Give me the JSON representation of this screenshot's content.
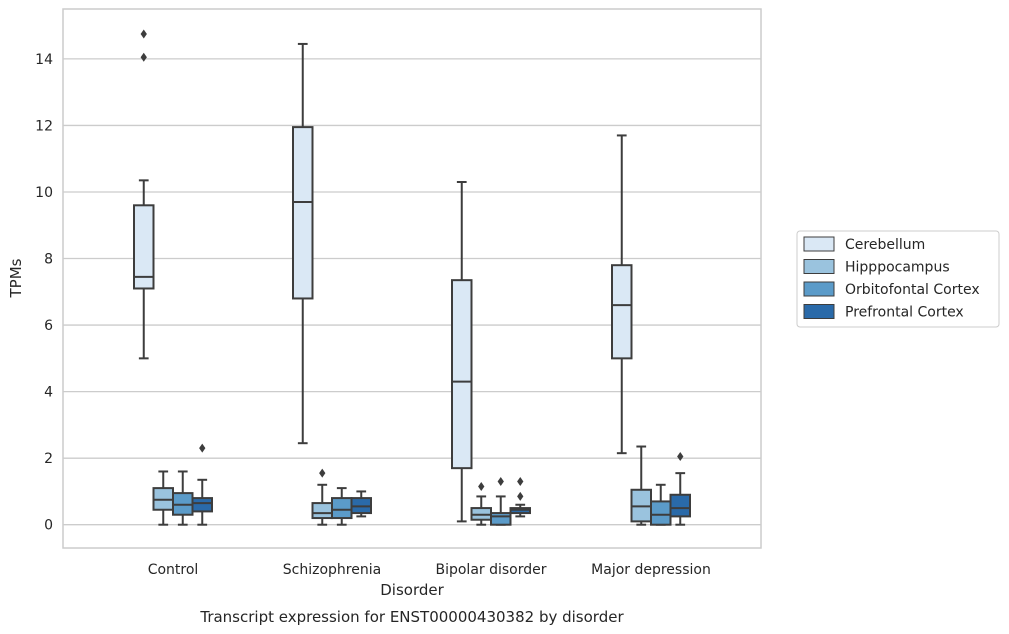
{
  "chart_data": {
    "type": "box",
    "title": "",
    "caption": "Transcript expression for ENST00000430382 by disorder",
    "xlabel": "Disorder",
    "ylabel": "TPMs",
    "ylim": [
      -0.7,
      15.5
    ],
    "yticks": [
      0,
      2,
      4,
      6,
      8,
      10,
      12,
      14
    ],
    "grid": true,
    "legend_position": "right",
    "categories": [
      "Control",
      "Schizophrenia",
      "Bipolar disorder",
      "Major depression"
    ],
    "series": [
      {
        "name": "Cerebellum",
        "color": "#dae8f5",
        "boxes": [
          {
            "whislo": 5.0,
            "q1": 7.1,
            "med": 7.45,
            "q3": 9.6,
            "whishi": 10.35,
            "fliers": [
              14.05,
              14.75
            ]
          },
          {
            "whislo": 2.45,
            "q1": 6.8,
            "med": 9.7,
            "q3": 11.95,
            "whishi": 14.45,
            "fliers": []
          },
          {
            "whislo": 0.1,
            "q1": 1.7,
            "med": 4.3,
            "q3": 7.35,
            "whishi": 10.3,
            "fliers": []
          },
          {
            "whislo": 2.15,
            "q1": 5.0,
            "med": 6.6,
            "q3": 7.8,
            "whishi": 11.7,
            "fliers": []
          }
        ]
      },
      {
        "name": "Hipppocampus",
        "color": "#9ac3de",
        "boxes": [
          {
            "whislo": 0.0,
            "q1": 0.45,
            "med": 0.75,
            "q3": 1.1,
            "whishi": 1.6,
            "fliers": []
          },
          {
            "whislo": 0.0,
            "q1": 0.2,
            "med": 0.35,
            "q3": 0.65,
            "whishi": 1.2,
            "fliers": [
              1.55
            ]
          },
          {
            "whislo": 0.0,
            "q1": 0.15,
            "med": 0.3,
            "q3": 0.5,
            "whishi": 0.85,
            "fliers": [
              1.15
            ]
          },
          {
            "whislo": 0.0,
            "q1": 0.1,
            "med": 0.55,
            "q3": 1.05,
            "whishi": 2.35,
            "fliers": []
          }
        ]
      },
      {
        "name": "Orbitofontal Cortex",
        "color": "#5b9bc9",
        "boxes": [
          {
            "whislo": 0.0,
            "q1": 0.3,
            "med": 0.6,
            "q3": 0.95,
            "whishi": 1.6,
            "fliers": []
          },
          {
            "whislo": 0.0,
            "q1": 0.2,
            "med": 0.45,
            "q3": 0.8,
            "whishi": 1.1,
            "fliers": []
          },
          {
            "whislo": 0.0,
            "q1": 0.0,
            "med": 0.25,
            "q3": 0.35,
            "whishi": 0.85,
            "fliers": [
              1.3
            ]
          },
          {
            "whislo": 0.0,
            "q1": 0.0,
            "med": 0.3,
            "q3": 0.7,
            "whishi": 1.2,
            "fliers": []
          }
        ]
      },
      {
        "name": "Prefrontal Cortex",
        "color": "#2a6aa9",
        "boxes": [
          {
            "whislo": 0.0,
            "q1": 0.4,
            "med": 0.65,
            "q3": 0.8,
            "whishi": 1.35,
            "fliers": [
              2.3
            ]
          },
          {
            "whislo": 0.25,
            "q1": 0.35,
            "med": 0.55,
            "q3": 0.8,
            "whishi": 1.0,
            "fliers": []
          },
          {
            "whislo": 0.25,
            "q1": 0.35,
            "med": 0.45,
            "q3": 0.5,
            "whishi": 0.6,
            "fliers": [
              0.85,
              1.3
            ]
          },
          {
            "whislo": 0.0,
            "q1": 0.25,
            "med": 0.5,
            "q3": 0.9,
            "whishi": 1.55,
            "fliers": [
              2.05
            ]
          }
        ]
      }
    ]
  },
  "colors": {
    "stroke": "#3d3d3d",
    "grid": "#cccccc",
    "frame": "#cccccc"
  }
}
